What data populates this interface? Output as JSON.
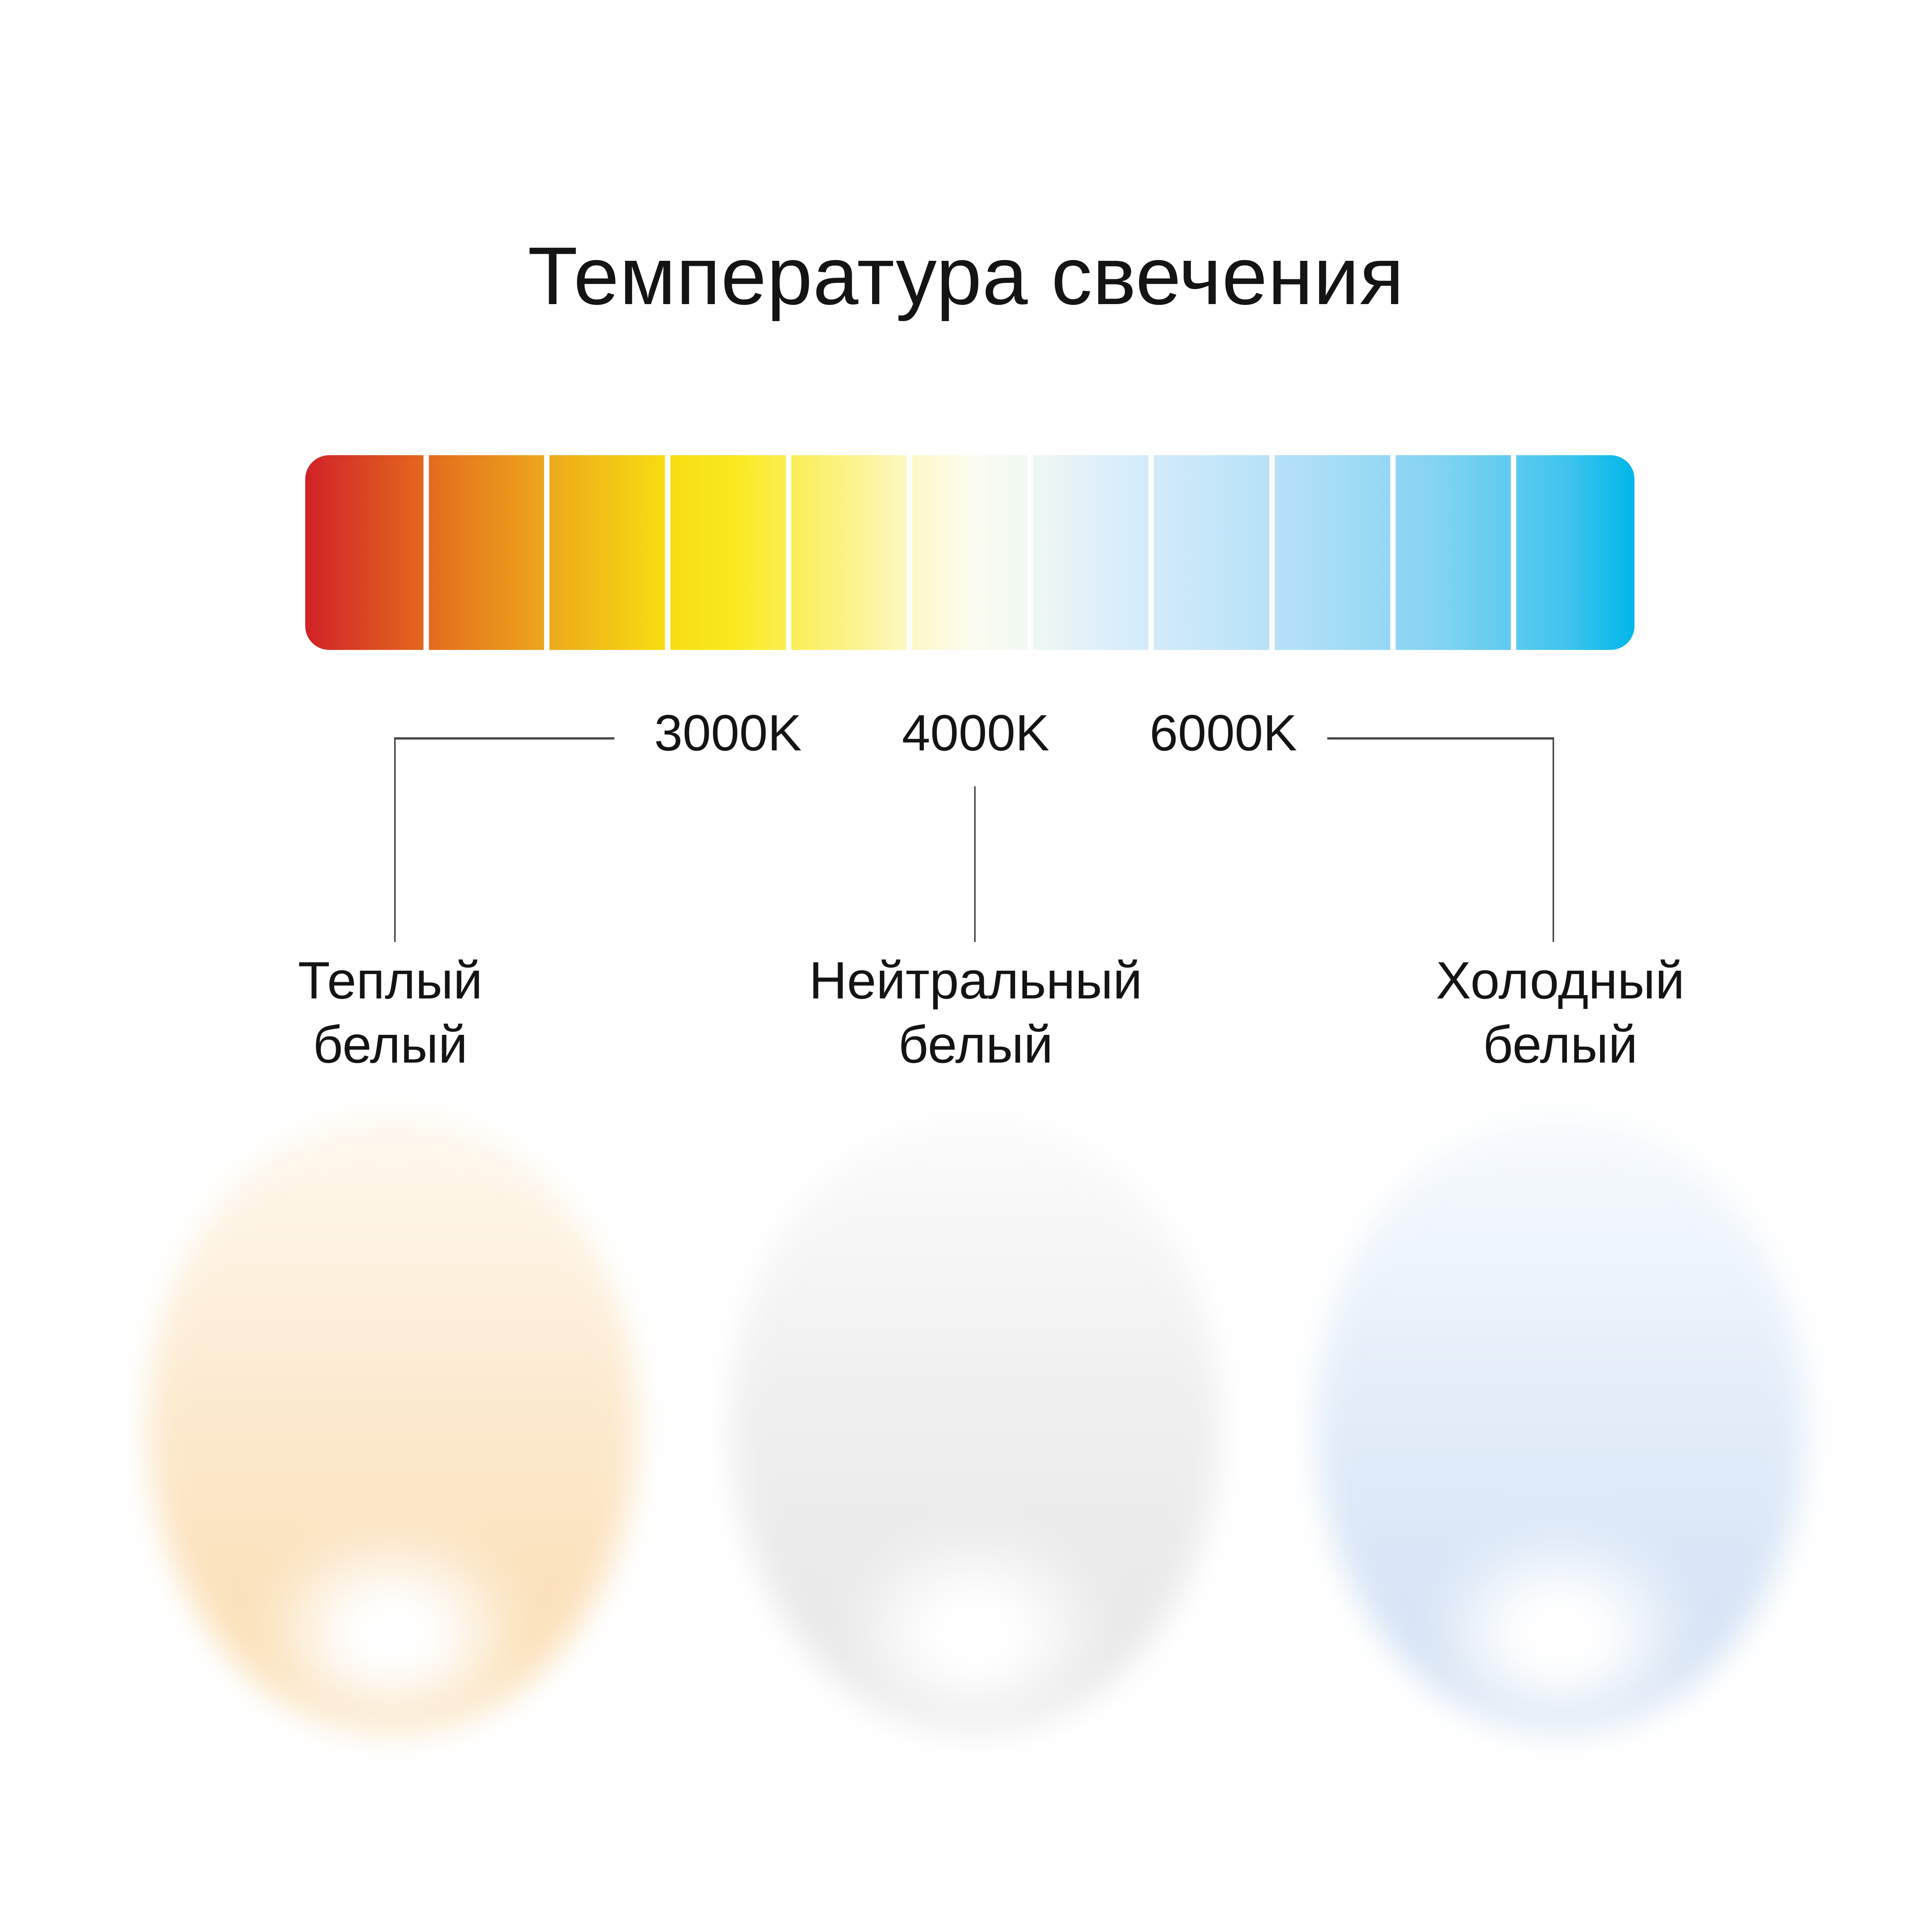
{
  "title": "Температура свечения",
  "text_color": "#141414",
  "line_color": "#4a4a4a",
  "scale_bar": {
    "segment_count": 11,
    "separator_color": "#ffffff",
    "gradient_stops": [
      {
        "color": "#d12127",
        "pos": 0
      },
      {
        "color": "#e3691f",
        "pos": 9
      },
      {
        "color": "#eda71b",
        "pos": 18
      },
      {
        "color": "#f7dc12",
        "pos": 27
      },
      {
        "color": "#f9e91c",
        "pos": 32
      },
      {
        "color": "#fcf38b",
        "pos": 41
      },
      {
        "color": "#fdf8c6",
        "pos": 45.5
      },
      {
        "color": "#fdfcf0",
        "pos": 50
      },
      {
        "color": "#f0f8f3",
        "pos": 54.5
      },
      {
        "color": "#ddeffa",
        "pos": 60
      },
      {
        "color": "#c6e6f9",
        "pos": 68
      },
      {
        "color": "#a8ddf6",
        "pos": 77
      },
      {
        "color": "#7fd2f1",
        "pos": 86
      },
      {
        "color": "#3fc4ed",
        "pos": 95
      },
      {
        "color": "#00b7e9",
        "pos": 100
      }
    ]
  },
  "temperature_labels": [
    {
      "label": "3000K"
    },
    {
      "label": "4000K"
    },
    {
      "label": "6000K"
    }
  ],
  "categories": [
    {
      "line1": "Теплый",
      "line2": "белый"
    },
    {
      "line1": "Нейтральный",
      "line2": "белый"
    },
    {
      "line1": "Холодный",
      "line2": "белый"
    }
  ],
  "orbs": [
    {
      "name": "warm-white",
      "body_colors": [
        "#fff9f0",
        "#fcebd1",
        "#fbe3bf",
        "#fadfb4"
      ],
      "glow_color": "#ffffff"
    },
    {
      "name": "neutral-white",
      "body_colors": [
        "#fcfcfc",
        "#f0f0f0",
        "#ebebeb",
        "#e7e7e7"
      ],
      "glow_color": "#ffffff"
    },
    {
      "name": "cool-white",
      "body_colors": [
        "#f8fbfe",
        "#e4eef9",
        "#d9e7f6",
        "#d2e1f2"
      ],
      "glow_color": "#ffffff"
    }
  ]
}
